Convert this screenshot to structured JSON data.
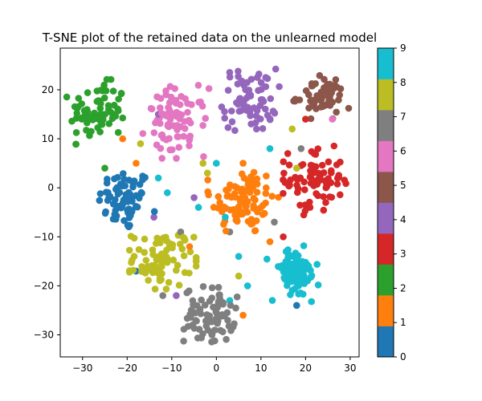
{
  "chart_data": {
    "type": "scatter",
    "title": "T-SNE plot of the retained data on the unlearned model",
    "xlabel": "",
    "ylabel": "",
    "xlim": [
      -35,
      32
    ],
    "ylim": [
      -34.5,
      28.5
    ],
    "xticks": [
      -30,
      -20,
      -10,
      0,
      10,
      20,
      30
    ],
    "yticks": [
      -30,
      -20,
      -10,
      0,
      10,
      20
    ],
    "grid": false,
    "colorbar": {
      "range": [
        0,
        9
      ],
      "ticks": [
        0,
        1,
        2,
        3,
        4,
        5,
        6,
        7,
        8,
        9
      ],
      "colors": [
        "#1f77b4",
        "#ff7f0e",
        "#2ca02c",
        "#d62728",
        "#9467bd",
        "#8c564b",
        "#e377c2",
        "#7f7f7f",
        "#bcbd22",
        "#17becf"
      ]
    },
    "clusters": [
      {
        "label": 0,
        "center": [
          -20.5,
          -2.5
        ],
        "spread": [
          3.0,
          3.2
        ],
        "count": 70
      },
      {
        "label": 1,
        "center": [
          6.0,
          -2.5
        ],
        "spread": [
          3.6,
          3.6
        ],
        "count": 90
      },
      {
        "label": 2,
        "center": [
          -26.5,
          15.5
        ],
        "spread": [
          3.2,
          3.0
        ],
        "count": 75
      },
      {
        "label": 3,
        "center": [
          22.0,
          1.5
        ],
        "spread": [
          3.2,
          3.2
        ],
        "count": 75
      },
      {
        "label": 4,
        "center": [
          7.5,
          18.0
        ],
        "spread": [
          3.0,
          3.2
        ],
        "count": 70
      },
      {
        "label": 5,
        "center": [
          23.5,
          18.5
        ],
        "spread": [
          2.8,
          2.0
        ],
        "count": 55
      },
      {
        "label": 6,
        "center": [
          -9.0,
          13.5
        ],
        "spread": [
          3.4,
          3.4
        ],
        "count": 80
      },
      {
        "label": 7,
        "center": [
          -1.5,
          -26.0
        ],
        "spread": [
          2.8,
          2.8
        ],
        "count": 80
      },
      {
        "label": 8,
        "center": [
          -12.0,
          -14.5
        ],
        "spread": [
          3.4,
          2.8
        ],
        "count": 80
      },
      {
        "label": 9,
        "center": [
          17.5,
          -17.5
        ],
        "spread": [
          2.8,
          2.6
        ],
        "count": 75
      }
    ],
    "stray_points": [
      {
        "x": -6,
        "y": 10,
        "label": 6
      },
      {
        "x": -3,
        "y": 5,
        "label": 8
      },
      {
        "x": 0,
        "y": 5,
        "label": 9
      },
      {
        "x": -13,
        "y": 2,
        "label": 9
      },
      {
        "x": -11,
        "y": -1,
        "label": 9
      },
      {
        "x": -5,
        "y": -2,
        "label": 4
      },
      {
        "x": -2,
        "y": 3,
        "label": 8
      },
      {
        "x": -4,
        "y": -4,
        "label": 9
      },
      {
        "x": 2,
        "y": -6,
        "label": 9
      },
      {
        "x": 3,
        "y": -9,
        "label": 7
      },
      {
        "x": -18,
        "y": 5,
        "label": 1
      },
      {
        "x": -17,
        "y": 9,
        "label": 8
      },
      {
        "x": -21,
        "y": 10,
        "label": 1
      },
      {
        "x": -25,
        "y": 4,
        "label": 2
      },
      {
        "x": -14,
        "y": -6,
        "label": 4
      },
      {
        "x": 12,
        "y": 8,
        "label": 9
      },
      {
        "x": 16,
        "y": 7,
        "label": 3
      },
      {
        "x": 18,
        "y": 4,
        "label": 8
      },
      {
        "x": 17,
        "y": 12,
        "label": 8
      },
      {
        "x": 20,
        "y": 14,
        "label": 3
      },
      {
        "x": 19,
        "y": 8,
        "label": 7
      },
      {
        "x": 13,
        "y": -7,
        "label": 7
      },
      {
        "x": 15,
        "y": -10,
        "label": 3
      },
      {
        "x": 12,
        "y": -11,
        "label": 1
      },
      {
        "x": 18,
        "y": -24,
        "label": 0
      },
      {
        "x": 7,
        "y": -20,
        "label": 9
      },
      {
        "x": 6,
        "y": -26,
        "label": 1
      },
      {
        "x": 5,
        "y": -18,
        "label": 8
      },
      {
        "x": 3,
        "y": -23,
        "label": 9
      },
      {
        "x": -9,
        "y": -22,
        "label": 4
      },
      {
        "x": -12,
        "y": -22,
        "label": 7
      },
      {
        "x": -18,
        "y": -17,
        "label": 0
      },
      {
        "x": -8,
        "y": -9,
        "label": 7
      },
      {
        "x": -6,
        "y": -12,
        "label": 1
      },
      {
        "x": 26,
        "y": 14,
        "label": 6
      },
      {
        "x": 21,
        "y": -4,
        "label": 3
      },
      {
        "x": 9,
        "y": 12,
        "label": 4
      },
      {
        "x": -13,
        "y": 15,
        "label": 4
      },
      {
        "x": 6,
        "y": 5,
        "label": 1
      },
      {
        "x": 5,
        "y": -14,
        "label": 9
      }
    ]
  }
}
